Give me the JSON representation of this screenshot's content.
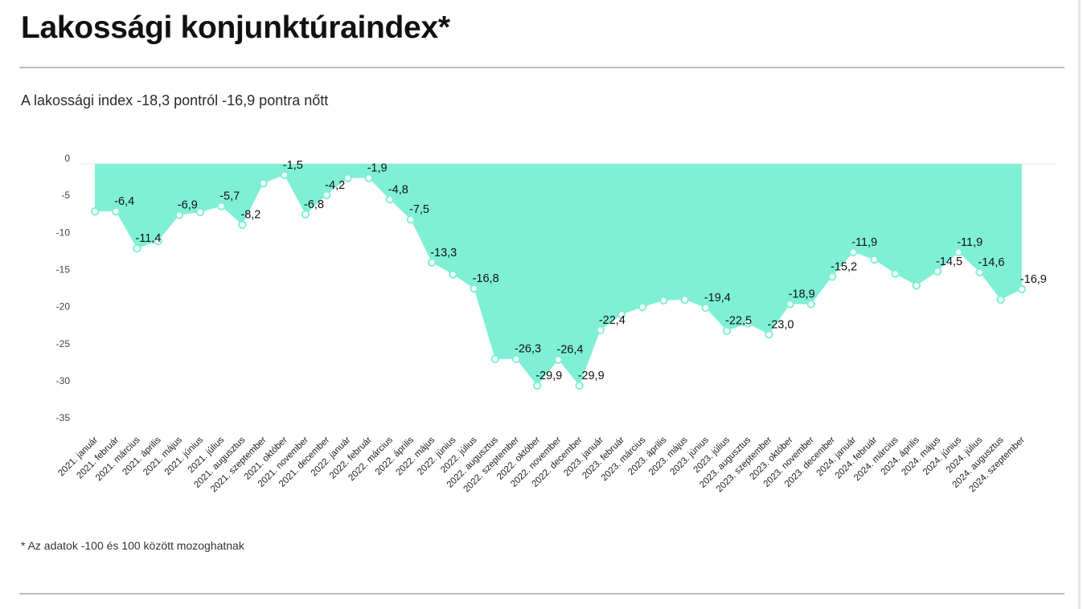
{
  "title": "Lakossági konjunktúraindex*",
  "subtitle": "A lakossági index -18,3 pontról -16,9 pontra nőtt",
  "footnote": "* Az adatok -100 és 100 között mozoghatnak",
  "colors": {
    "area": "#7ff0d5",
    "marker_fill": "#ffffff",
    "grid": "#e6e6e6"
  },
  "chart_data": {
    "type": "area",
    "title": "Lakossági konjunktúraindex*",
    "subtitle": "A lakossági index -18,3 pontról -16,9 pontra nőtt",
    "xlabel": "",
    "ylabel": "",
    "ylim": [
      -35,
      0
    ],
    "yticks": [
      0,
      -5,
      -10,
      -15,
      -20,
      -25,
      -30,
      -35
    ],
    "grid": false,
    "legend": "none",
    "categories": [
      "2021. január",
      "2021. február",
      "2021. március",
      "2021. április",
      "2021. május",
      "2021. június",
      "2021. július",
      "2021. augusztus",
      "2021. szeptember",
      "2021. október",
      "2021. november",
      "2021. december",
      "2022. január",
      "2022. február",
      "2022. március",
      "2022. április",
      "2022. május",
      "2022. június",
      "2022. július",
      "2022. augusztus",
      "2022. szeptember",
      "2022. október",
      "2022. november",
      "2022. december",
      "2023. január",
      "2023. február",
      "2023. március",
      "2023. április",
      "2023. május",
      "2023. június",
      "2023. július",
      "2023. augusztus",
      "2023. szeptember",
      "2023. október",
      "2023. november",
      "2023. december",
      "2024. január",
      "2024. február",
      "2024. március",
      "2024. április",
      "2024. május",
      "2024. június",
      "2024. július",
      "2024. augusztus",
      "2024. szeptember"
    ],
    "values": [
      -6.4,
      -6.4,
      -11.4,
      -10.4,
      -6.9,
      -6.5,
      -5.7,
      -8.2,
      -2.6,
      -1.5,
      -6.8,
      -4.2,
      -1.9,
      -1.9,
      -4.8,
      -7.5,
      -13.3,
      -14.9,
      -16.8,
      -26.3,
      -26.3,
      -29.9,
      -26.4,
      -29.9,
      -22.4,
      -20.3,
      -19.3,
      -18.4,
      -18.3,
      -19.4,
      -22.5,
      -21.5,
      -23.0,
      -18.9,
      -18.9,
      -15.2,
      -11.9,
      -12.9,
      -14.8,
      -16.4,
      -14.5,
      -11.9,
      -14.6,
      -18.3,
      -16.9
    ],
    "data_labels": [
      {
        "index": 1,
        "text": "-6,4"
      },
      {
        "index": 2,
        "text": "-11,4"
      },
      {
        "index": 4,
        "text": "-6,9"
      },
      {
        "index": 6,
        "text": "-5,7"
      },
      {
        "index": 7,
        "text": "-8,2"
      },
      {
        "index": 9,
        "text": "-1,5"
      },
      {
        "index": 10,
        "text": "-6,8"
      },
      {
        "index": 11,
        "text": "-4,2"
      },
      {
        "index": 13,
        "text": "-1,9"
      },
      {
        "index": 14,
        "text": "-4,8"
      },
      {
        "index": 15,
        "text": "-7,5"
      },
      {
        "index": 16,
        "text": "-13,3"
      },
      {
        "index": 18,
        "text": "-16,8"
      },
      {
        "index": 20,
        "text": "-26,3"
      },
      {
        "index": 21,
        "text": "-29,9"
      },
      {
        "index": 22,
        "text": "-26,4"
      },
      {
        "index": 23,
        "text": "-29,9"
      },
      {
        "index": 24,
        "text": "-22,4"
      },
      {
        "index": 29,
        "text": "-19,4"
      },
      {
        "index": 30,
        "text": "-22,5"
      },
      {
        "index": 32,
        "text": "-23,0"
      },
      {
        "index": 33,
        "text": "-18,9"
      },
      {
        "index": 35,
        "text": "-15,2"
      },
      {
        "index": 36,
        "text": "-11,9"
      },
      {
        "index": 40,
        "text": "-14,5"
      },
      {
        "index": 41,
        "text": "-11,9"
      },
      {
        "index": 42,
        "text": "-14,6"
      },
      {
        "index": 44,
        "text": "-16,9"
      }
    ]
  }
}
